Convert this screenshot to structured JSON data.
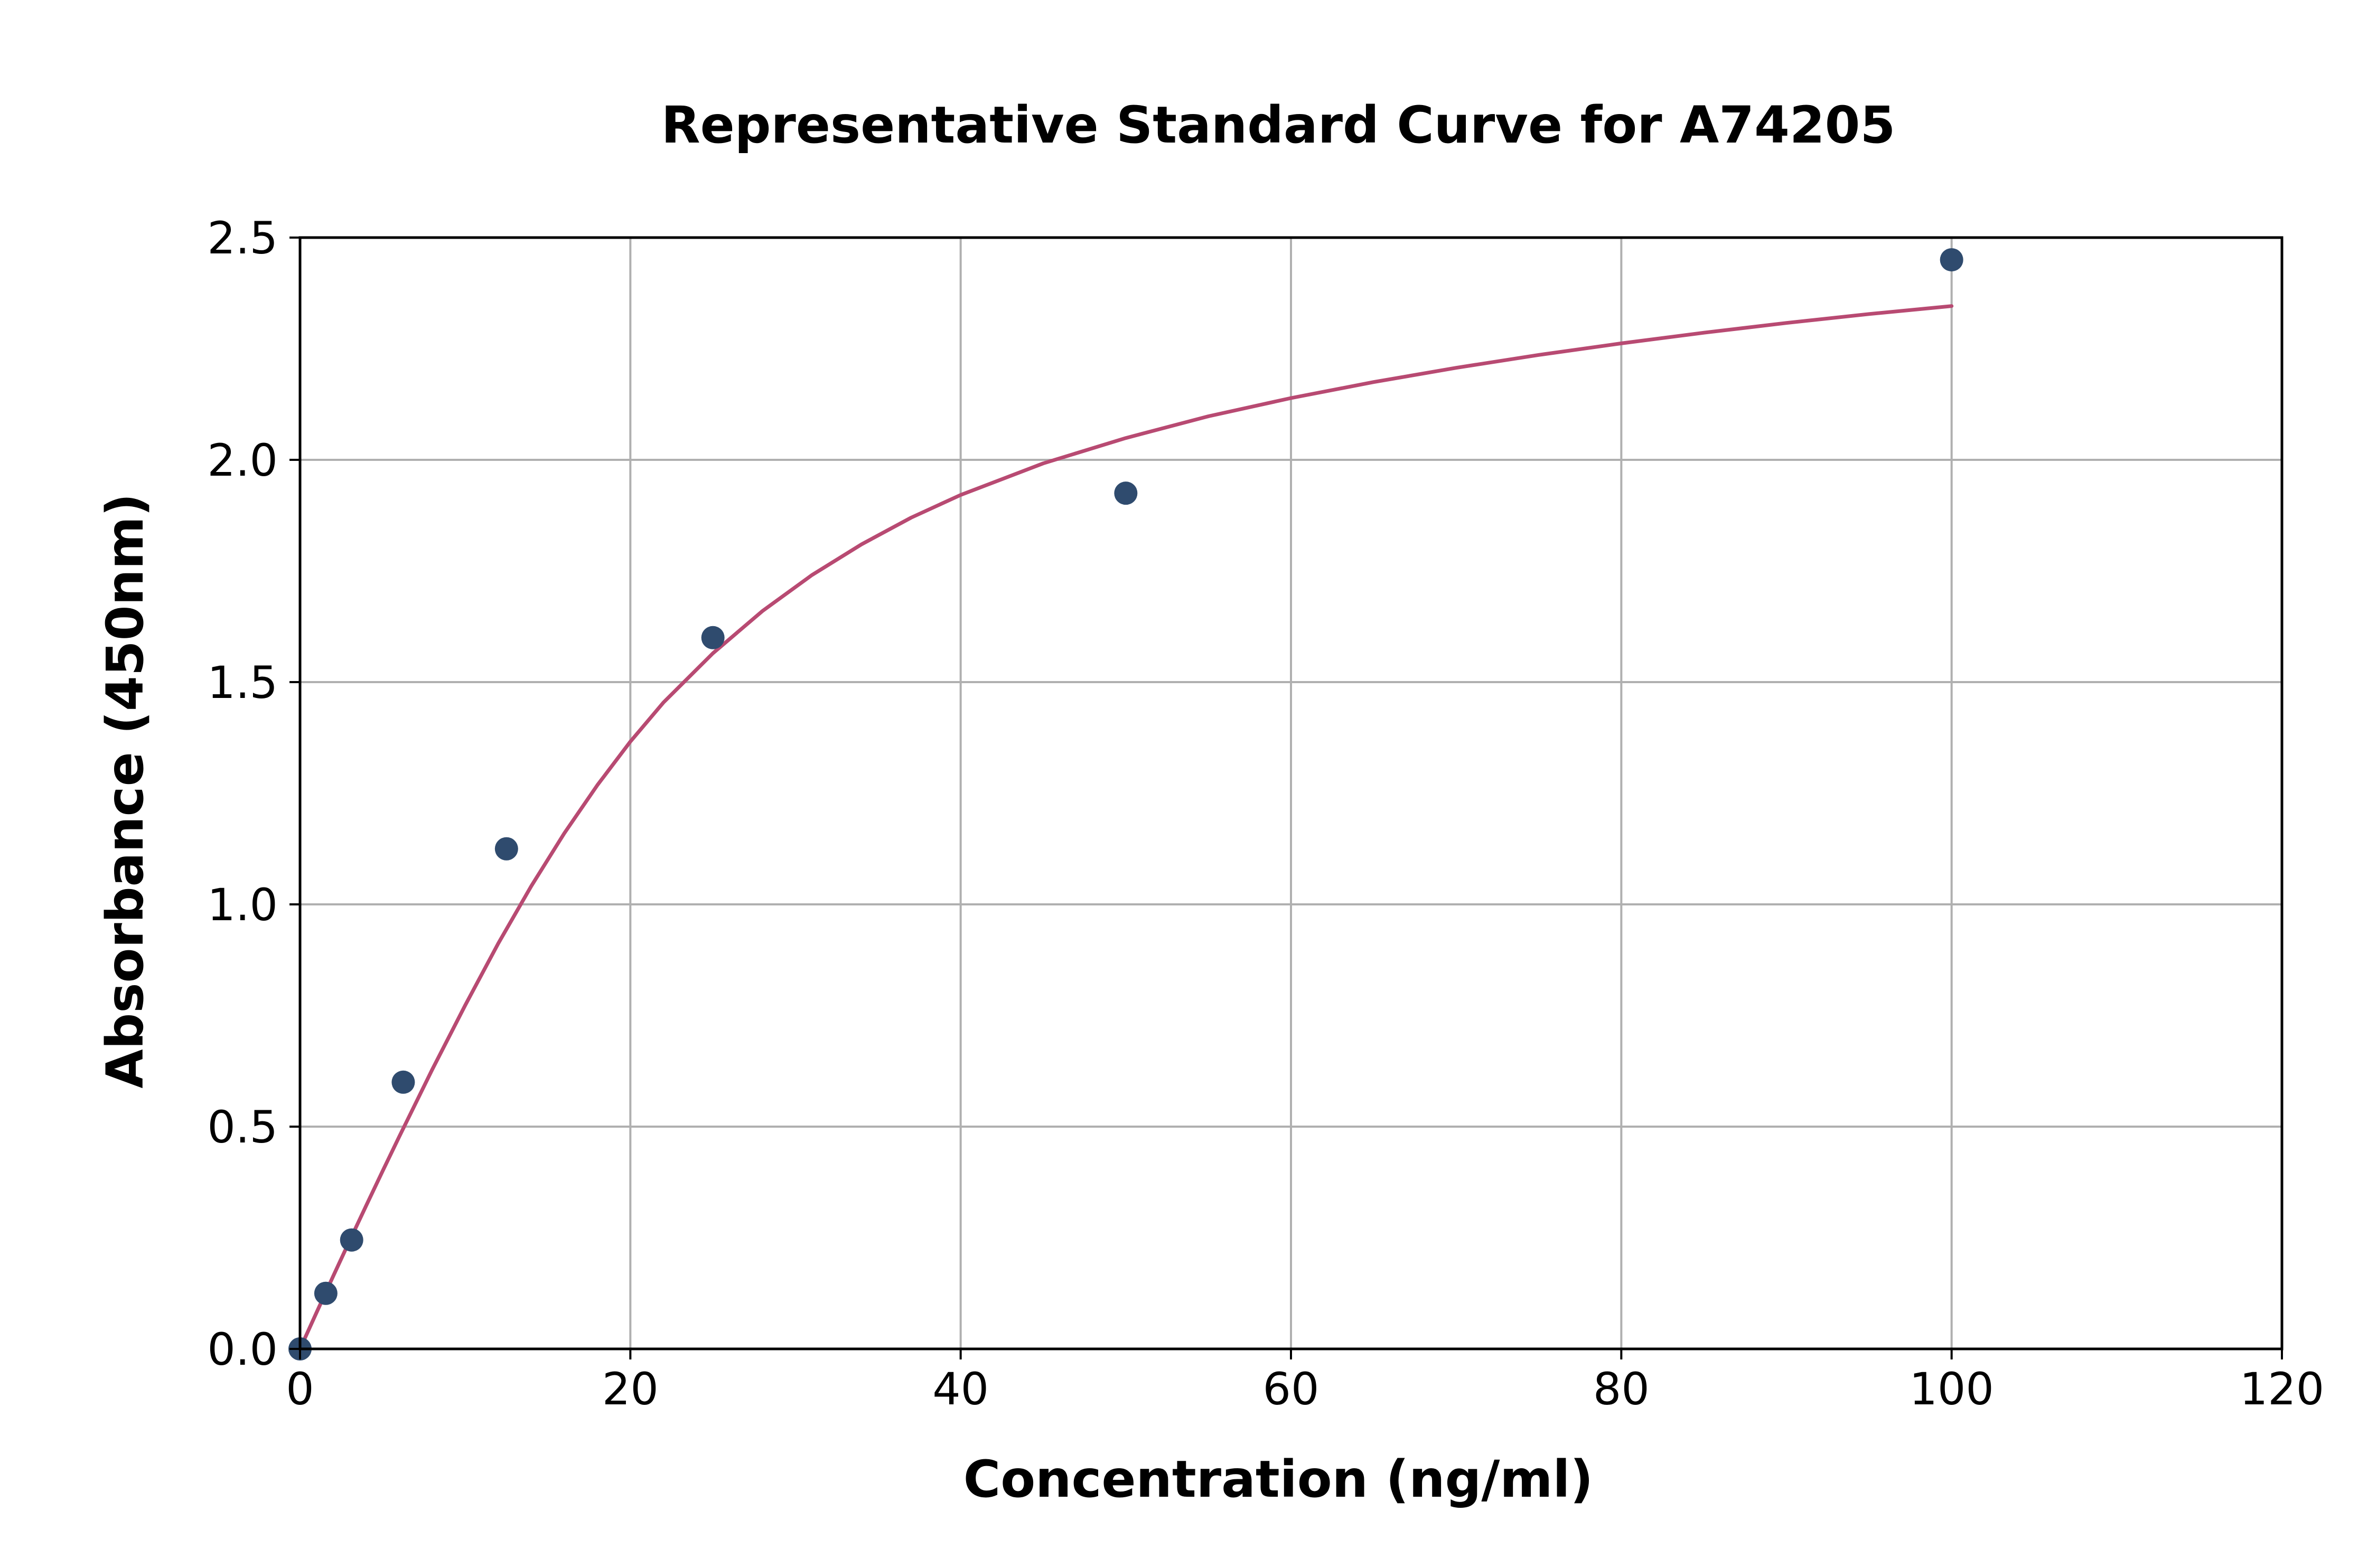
{
  "chart_data": {
    "type": "scatter",
    "title": "Representative Standard Curve for A74205",
    "xlabel": "Concentration (ng/ml)",
    "ylabel": "Absorbance (450nm)",
    "xlim": [
      0,
      120
    ],
    "ylim": [
      0,
      2.5
    ],
    "xticks": [
      0,
      20,
      40,
      60,
      80,
      100,
      120
    ],
    "xtick_labels": [
      "0",
      "20",
      "40",
      "60",
      "80",
      "100",
      "120"
    ],
    "yticks": [
      0,
      0.5,
      1.0,
      1.5,
      2.0,
      2.5
    ],
    "ytick_labels": [
      "0.0",
      "0.5",
      "1.0",
      "1.5",
      "2.0",
      "2.5"
    ],
    "grid": true,
    "legend": "none",
    "colors": {
      "points": "#2f4b6e",
      "curve": "#b84a72",
      "grid": "#b0b0b0",
      "axes": "#000000"
    },
    "series": [
      {
        "kind": "scatter",
        "x": [
          0,
          1.5625,
          3.125,
          6.25,
          12.5,
          25,
          50,
          100
        ],
        "y": [
          0.0,
          0.125,
          0.245,
          0.6,
          1.125,
          1.6,
          1.925,
          2.45
        ]
      },
      {
        "kind": "line",
        "x": [
          0,
          1,
          2,
          3,
          4,
          5,
          6,
          8,
          10,
          12,
          14,
          16,
          18,
          20,
          22,
          25,
          28,
          31,
          34,
          37,
          40,
          45,
          50,
          55,
          60,
          65,
          70,
          75,
          80,
          85,
          90,
          95,
          100
        ],
        "y": [
          0.0,
          0.082,
          0.163,
          0.243,
          0.322,
          0.4,
          0.477,
          0.628,
          0.773,
          0.912,
          1.041,
          1.16,
          1.268,
          1.366,
          1.454,
          1.565,
          1.66,
          1.741,
          1.81,
          1.87,
          1.921,
          1.992,
          2.049,
          2.098,
          2.139,
          2.175,
          2.207,
          2.236,
          2.262,
          2.286,
          2.308,
          2.328,
          2.346
        ]
      }
    ]
  }
}
